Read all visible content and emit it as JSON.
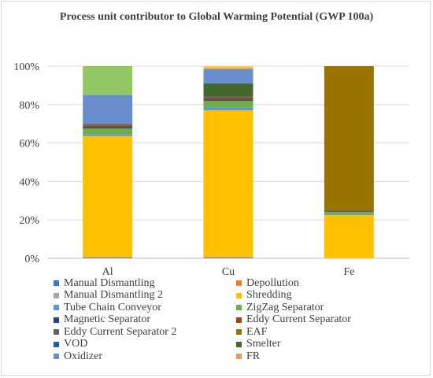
{
  "chart_data": {
    "type": "bar",
    "stacked": true,
    "percent": true,
    "title": "Process unit contributor to Global Warming Potential (GWP 100a)",
    "categories": [
      "Al",
      "Cu",
      "Fe"
    ],
    "y_ticks": [
      "0%",
      "20%",
      "40%",
      "60%",
      "80%",
      "100%"
    ],
    "ylim": [
      0,
      100
    ],
    "grid": true,
    "legend_position": "bottom",
    "series": [
      {
        "name": "Manual Dismantling",
        "color": "#4472c4",
        "values": [
          0.3,
          0.3,
          0
        ]
      },
      {
        "name": "Depollution",
        "color": "#ed7d31",
        "values": [
          0.1,
          0.1,
          0
        ]
      },
      {
        "name": "Manual Dismantling 2",
        "color": "#a5a5a5",
        "values": [
          0.2,
          0.2,
          0
        ]
      },
      {
        "name": "Shredding",
        "color": "#ffc000",
        "values": [
          63,
          76.4,
          22.5
        ]
      },
      {
        "name": "Tube Chain Conveyor",
        "color": "#5b9bd5",
        "values": [
          1.0,
          1.5,
          0.6
        ]
      },
      {
        "name": "ZigZag Separator",
        "color": "#70ad47",
        "values": [
          3.0,
          3.5,
          1.0
        ]
      },
      {
        "name": "Magnetic Separator",
        "color": "#264478",
        "values": [
          0.6,
          0.6,
          0.4
        ]
      },
      {
        "name": "Eddy Current Separator",
        "color": "#9e480e",
        "values": [
          0.8,
          0.8,
          0
        ]
      },
      {
        "name": "Eddy Current Separator 2",
        "color": "#636363",
        "values": [
          1.0,
          1.0,
          0.3
        ]
      },
      {
        "name": "EAF",
        "color": "#997300",
        "values": [
          0,
          0,
          75.2
        ]
      },
      {
        "name": "VOD",
        "color": "#255e91",
        "values": [
          0,
          0,
          0
        ]
      },
      {
        "name": "Smelter",
        "color": "#43682b",
        "values": [
          0,
          6.6,
          0
        ]
      },
      {
        "name": "Oxidizer",
        "color": "#698ed0",
        "values": [
          15.0,
          7.5,
          0
        ]
      },
      {
        "name": "FR",
        "color": "#f1975a",
        "values": [
          0,
          0.5,
          0
        ]
      },
      {
        "name": "",
        "color": "#92c864",
        "values": [
          15.0,
          0,
          0
        ]
      },
      {
        "name": "",
        "color": "#ffcd33",
        "values": [
          0,
          1.0,
          0
        ]
      }
    ]
  }
}
